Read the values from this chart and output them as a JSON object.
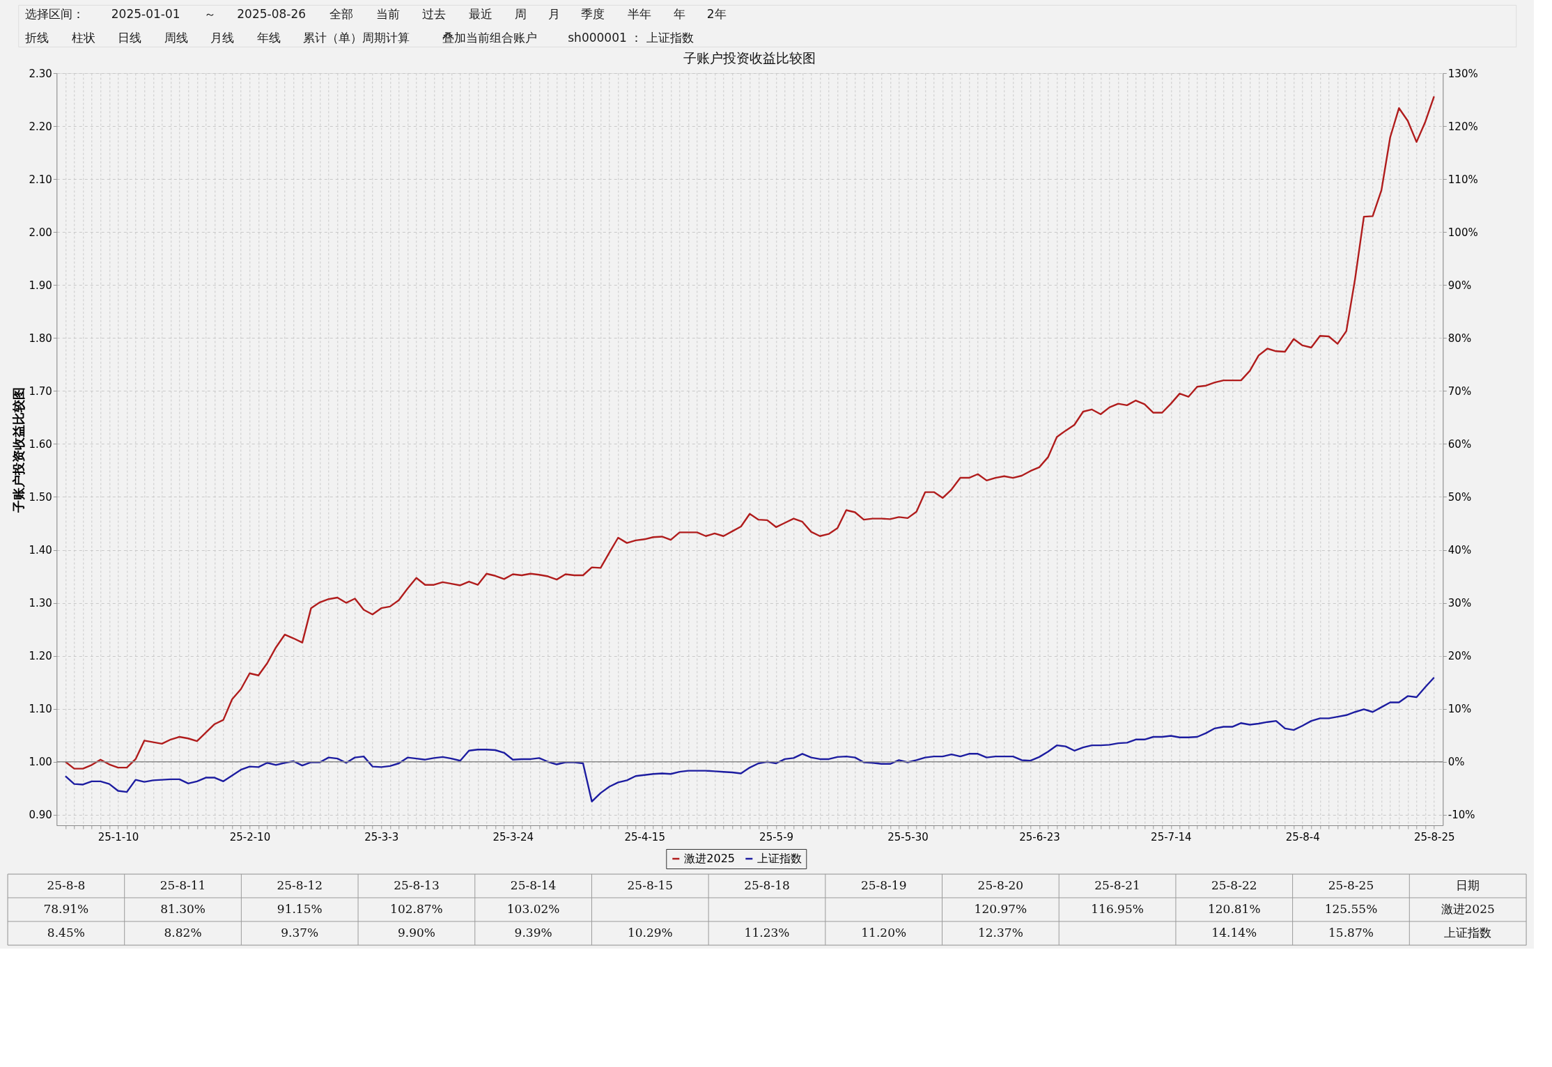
{
  "chart_data": [
    {
      "type": "other",
      "annotations": [
        "选择区间：",
        "2025-01-01",
        "～",
        "2025-08-26",
        "全部",
        "当前",
        "过去",
        "最近",
        "周",
        "月",
        "季度",
        "半年",
        "年",
        "2年",
        "折线",
        "柱状",
        "日线",
        "周线",
        "月线",
        "年线",
        "累计（单）周期计算",
        "叠加当前组合账户",
        "sh000001 ： 上证指数"
      ]
    },
    {
      "type": "line",
      "title": "子账户投资收益比较图",
      "ylabel": "子账户投资收益比较图",
      "categories": [
        null,
        null,
        null,
        null,
        null,
        null,
        "25-1-10",
        null,
        null,
        null,
        null,
        null,
        null,
        null,
        null,
        null,
        null,
        null,
        null,
        null,
        null,
        "25-2-10",
        null,
        null,
        null,
        null,
        null,
        null,
        null,
        null,
        null,
        null,
        null,
        null,
        null,
        null,
        "25-3-3",
        null,
        null,
        null,
        null,
        null,
        null,
        null,
        null,
        null,
        null,
        null,
        null,
        null,
        null,
        "25-3-24",
        null,
        null,
        null,
        null,
        null,
        null,
        null,
        null,
        null,
        null,
        null,
        null,
        null,
        null,
        "25-4-15",
        null,
        null,
        null,
        null,
        null,
        null,
        null,
        null,
        null,
        null,
        null,
        null,
        null,
        null,
        "25-5-9",
        null,
        null,
        null,
        null,
        null,
        null,
        null,
        null,
        null,
        null,
        null,
        null,
        null,
        null,
        "25-5-30",
        null,
        null,
        null,
        null,
        null,
        null,
        null,
        null,
        null,
        null,
        null,
        null,
        null,
        null,
        "25-6-23",
        null,
        null,
        null,
        null,
        null,
        null,
        null,
        null,
        null,
        null,
        null,
        null,
        null,
        null,
        "25-7-14",
        null,
        null,
        null,
        null,
        null,
        null,
        null,
        null,
        null,
        null,
        null,
        null,
        null,
        null,
        "25-8-4",
        null,
        null,
        null,
        null,
        null,
        null,
        null,
        null,
        null,
        null,
        null,
        null,
        null,
        null,
        "25-8-25"
      ],
      "series": [
        {
          "name": "激进2025",
          "color": "#b01c1c",
          "values": [
            1.0,
            0.987,
            0.987,
            0.994,
            1.004,
            0.995,
            0.989,
            0.989,
            1.005,
            1.04,
            1.037,
            1.034,
            1.042,
            1.047,
            1.044,
            1.039,
            1.055,
            1.071,
            1.079,
            1.118,
            1.137,
            1.167,
            1.163,
            1.186,
            1.216,
            1.24,
            1.233,
            1.225,
            1.29,
            1.301,
            1.307,
            1.31,
            1.3,
            1.308,
            1.287,
            1.278,
            1.29,
            1.293,
            1.305,
            1.327,
            1.347,
            1.334,
            1.334,
            1.339,
            1.336,
            1.333,
            1.34,
            1.334,
            1.355,
            1.351,
            1.345,
            1.354,
            1.352,
            1.355,
            1.353,
            1.35,
            1.344,
            1.354,
            1.352,
            1.352,
            1.367,
            1.366,
            1.395,
            1.423,
            1.413,
            1.418,
            1.42,
            1.424,
            1.425,
            1.419,
            1.433,
            1.433,
            1.433,
            1.426,
            1.431,
            1.426,
            1.435,
            1.444,
            1.468,
            1.457,
            1.456,
            1.443,
            1.451,
            1.459,
            1.453,
            1.434,
            1.426,
            1.43,
            1.441,
            1.475,
            1.471,
            1.457,
            1.459,
            1.459,
            1.458,
            1.462,
            1.46,
            1.472,
            1.509,
            1.509,
            1.498,
            1.514,
            1.536,
            1.536,
            1.543,
            1.531,
            1.536,
            1.539,
            1.536,
            1.54,
            1.549,
            1.556,
            1.575,
            1.613,
            1.625,
            1.636,
            1.661,
            1.665,
            1.656,
            1.669,
            1.676,
            1.673,
            1.682,
            1.675,
            1.659,
            1.659,
            1.676,
            1.695,
            1.689,
            1.708,
            1.71,
            1.716,
            1.72,
            1.72,
            1.72,
            1.738,
            1.767,
            1.78,
            1.775,
            1.774,
            1.798,
            1.786,
            1.782,
            1.804,
            1.803,
            1.789,
            1.813,
            1.912,
            2.029,
            2.03,
            2.079,
            2.179,
            2.234,
            2.21,
            2.17,
            2.208,
            2.256
          ]
        },
        {
          "name": "上证指数",
          "color": "#1c1ca0",
          "values": [
            0.973,
            0.958,
            0.957,
            0.963,
            0.963,
            0.958,
            0.945,
            0.943,
            0.966,
            0.962,
            0.965,
            0.966,
            0.967,
            0.967,
            0.959,
            0.963,
            0.97,
            0.97,
            0.963,
            0.974,
            0.985,
            0.991,
            0.99,
            0.998,
            0.994,
            0.998,
            1.001,
            0.993,
            0.999,
            0.999,
            1.008,
            1.006,
            0.998,
            1.008,
            1.01,
            0.991,
            0.99,
            0.992,
            0.997,
            1.008,
            1.006,
            1.004,
            1.007,
            1.009,
            1.006,
            1.002,
            1.021,
            1.023,
            1.023,
            1.022,
            1.017,
            1.004,
            1.005,
            1.005,
            1.007,
            1.0,
            0.995,
            0.999,
            0.999,
            0.997,
            0.925,
            0.941,
            0.953,
            0.961,
            0.965,
            0.973,
            0.975,
            0.977,
            0.978,
            0.977,
            0.981,
            0.983,
            0.983,
            0.983,
            0.982,
            0.981,
            0.98,
            0.978,
            0.989,
            0.997,
            1.0,
            0.997,
            1.005,
            1.007,
            1.015,
            1.008,
            1.005,
            1.005,
            1.009,
            1.01,
            1.008,
            0.999,
            0.998,
            0.996,
            0.996,
            1.003,
            0.999,
            1.003,
            1.008,
            1.01,
            1.01,
            1.014,
            1.01,
            1.015,
            1.015,
            1.008,
            1.01,
            1.01,
            1.01,
            1.003,
            1.002,
            1.009,
            1.019,
            1.031,
            1.029,
            1.021,
            1.027,
            1.031,
            1.031,
            1.032,
            1.035,
            1.036,
            1.042,
            1.042,
            1.047,
            1.047,
            1.049,
            1.046,
            1.046,
            1.047,
            1.054,
            1.063,
            1.066,
            1.066,
            1.073,
            1.07,
            1.072,
            1.075,
            1.077,
            1.063,
            1.06,
            1.068,
            1.077,
            1.082,
            1.082,
            1.085,
            1.088,
            1.094,
            1.099,
            1.094,
            1.103,
            1.112,
            1.112,
            1.124,
            1.122,
            1.141,
            1.159
          ]
        }
      ],
      "ylim": [
        0.88,
        2.3
      ],
      "yticks": [
        {
          "value": 0.9,
          "label": "0.90"
        },
        {
          "value": 1.0,
          "label": "1.00"
        },
        {
          "value": 1.1,
          "label": "1.10"
        },
        {
          "value": 1.2,
          "label": "1.20"
        },
        {
          "value": 1.3,
          "label": "1.30"
        },
        {
          "value": 1.4,
          "label": "1.40"
        },
        {
          "value": 1.5,
          "label": "1.50"
        },
        {
          "value": 1.6,
          "label": "1.60"
        },
        {
          "value": 1.7,
          "label": "1.70"
        },
        {
          "value": 1.8,
          "label": "1.80"
        },
        {
          "value": 1.9,
          "label": "1.90"
        },
        {
          "value": 2.0,
          "label": "2.00"
        },
        {
          "value": 2.1,
          "label": "2.10"
        },
        {
          "value": 2.2,
          "label": "2.20"
        },
        {
          "value": 2.3,
          "label": "2.30"
        }
      ],
      "y2lim": [
        -12,
        130
      ],
      "y2ticks": [
        {
          "value": -10,
          "label": "-10%"
        },
        {
          "value": 0,
          "label": "0%"
        },
        {
          "value": 10,
          "label": "10%"
        },
        {
          "value": 20,
          "label": "20%"
        },
        {
          "value": 30,
          "label": "30%"
        },
        {
          "value": 40,
          "label": "40%"
        },
        {
          "value": 50,
          "label": "50%"
        },
        {
          "value": 60,
          "label": "60%"
        },
        {
          "value": 70,
          "label": "70%"
        },
        {
          "value": 80,
          "label": "80%"
        },
        {
          "value": 90,
          "label": "90%"
        },
        {
          "value": 100,
          "label": "100%"
        },
        {
          "value": 110,
          "label": "110%"
        },
        {
          "value": 120,
          "label": "120%"
        },
        {
          "value": 130,
          "label": "130%"
        }
      ],
      "ref_lines": [
        {
          "axis": "y2",
          "value": 0,
          "color": "#8c8c8c"
        }
      ],
      "grid": true,
      "legend": "bottom",
      "marker": "none",
      "line_style": "solid"
    },
    {
      "type": "other",
      "xlabel": "日期",
      "categories": [
        "25-8-8",
        "25-8-11",
        "25-8-12",
        "25-8-13",
        "25-8-14",
        "25-8-15",
        "25-8-18",
        "25-8-19",
        "25-8-20",
        "25-8-21",
        "25-8-22",
        "25-8-25"
      ],
      "series": [
        {
          "name": "激进2025",
          "values": [
            78.91,
            81.3,
            91.15,
            102.87,
            103.02,
            null,
            null,
            null,
            120.97,
            116.95,
            120.81,
            125.55
          ],
          "value_labels": [
            "78.91%",
            "81.30%",
            "91.15%",
            "102.87%",
            "103.02%",
            null,
            null,
            null,
            "120.97%",
            "116.95%",
            "120.81%",
            "125.55%"
          ]
        },
        {
          "name": "上证指数",
          "values": [
            8.45,
            8.82,
            9.37,
            9.9,
            9.39,
            10.29,
            11.23,
            11.2,
            12.37,
            null,
            14.14,
            15.87
          ],
          "value_labels": [
            "8.45%",
            "8.82%",
            "9.37%",
            "9.90%",
            "9.39%",
            "10.29%",
            "11.23%",
            "11.20%",
            "12.37%",
            null,
            "14.14%",
            "15.87%"
          ]
        }
      ]
    }
  ]
}
